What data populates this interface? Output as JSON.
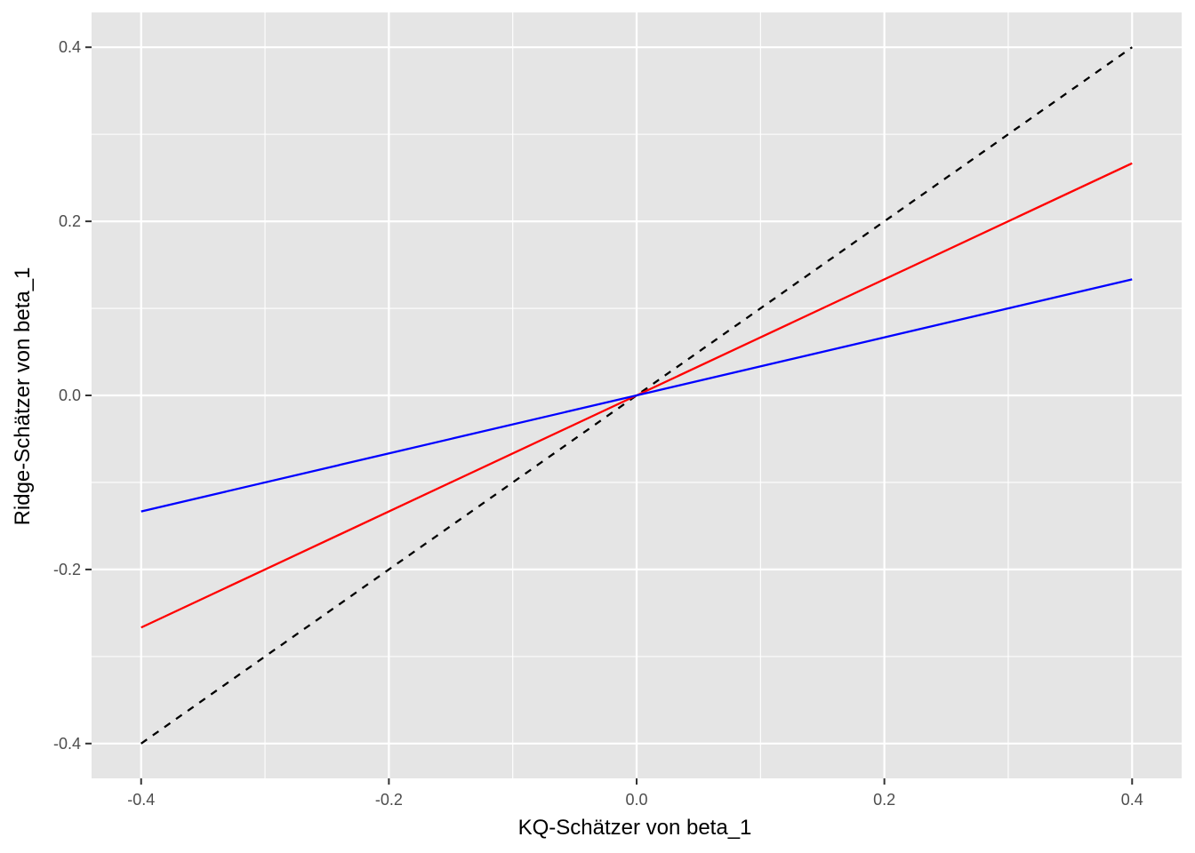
{
  "chart_data": {
    "type": "line",
    "title": "",
    "xlabel": "KQ-Schätzer von beta_1",
    "ylabel": "Ridge-Schätzer von beta_1",
    "xlim": [
      -0.44,
      0.44
    ],
    "ylim": [
      -0.44,
      0.44
    ],
    "x_ticks": [
      -0.4,
      -0.2,
      0.0,
      0.2,
      0.4
    ],
    "x_tick_labels": [
      "-0.4",
      "-0.2",
      "0.0",
      "0.2",
      "0.4"
    ],
    "y_ticks": [
      -0.4,
      -0.2,
      0.0,
      0.2,
      0.4
    ],
    "y_tick_labels": [
      "-0.4",
      "-0.2",
      "0.0",
      "0.2",
      "0.4"
    ],
    "grid": true,
    "legend": "none",
    "colors": {
      "panel_background": "#e5e5e5",
      "grid_line": "#ffffff",
      "tick_mark": "#333333"
    },
    "series": [
      {
        "x": [
          -0.4,
          0.0,
          0.4
        ],
        "y": [
          -0.4,
          0.0,
          0.4
        ],
        "color": "#000000",
        "dashed": true
      },
      {
        "x": [
          -0.4,
          0.0,
          0.4
        ],
        "y": [
          -0.2667,
          0.0,
          0.2667
        ],
        "color": "#ff0000",
        "dashed": false
      },
      {
        "x": [
          -0.4,
          0.0,
          0.4
        ],
        "y": [
          -0.1333,
          0.0,
          0.1333
        ],
        "color": "#0000ff",
        "dashed": false
      }
    ]
  }
}
